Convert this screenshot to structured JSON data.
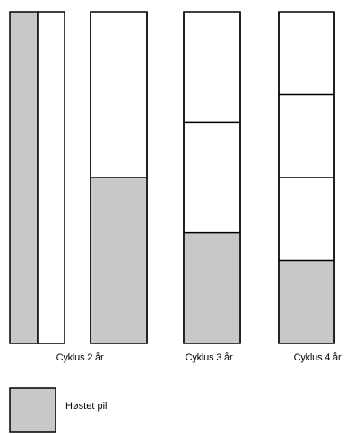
{
  "colors": {
    "harvested": "#c8c8c8",
    "outline": "#000000",
    "background": "#ffffff"
  },
  "cycles": [
    {
      "label": "Cyklus 2 år",
      "years": 2,
      "harvested_fraction": 0.5
    },
    {
      "label": "Cyklus 3 år",
      "years": 3,
      "harvested_fraction": 0.3333
    },
    {
      "label": "Cyklus 4 år",
      "years": 4,
      "harvested_fraction": 0.25
    }
  ],
  "legend": {
    "label": "Høstet pil"
  }
}
